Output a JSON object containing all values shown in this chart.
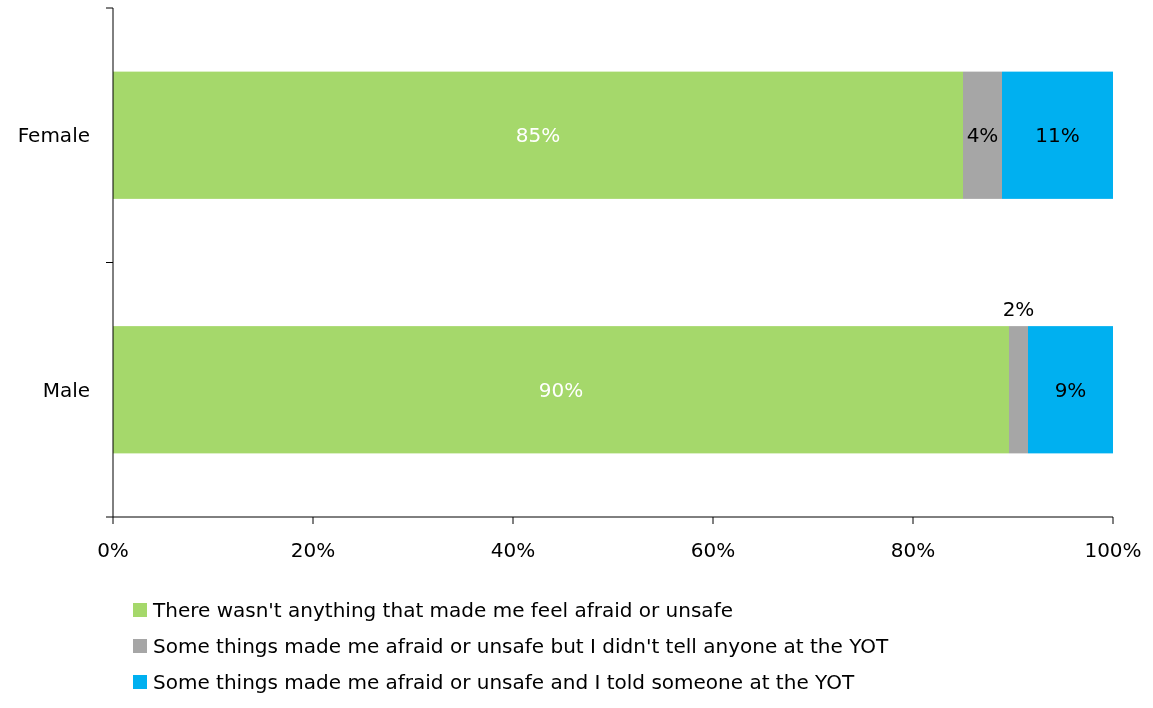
{
  "chart_data": {
    "type": "bar",
    "orientation": "horizontal",
    "stacked": true,
    "categories": [
      "Female",
      "Male"
    ],
    "series": [
      {
        "name": "There wasn't anything that made me feel afraid or unsafe",
        "color": "#a5d86b",
        "values": [
          85,
          89.6
        ],
        "value_labels": [
          "85%",
          "90%"
        ]
      },
      {
        "name": "Some things made me afraid or unsafe but I didn't tell anyone at the YOT",
        "color": "#a6a6a6",
        "values": [
          3.9,
          1.9
        ],
        "value_labels": [
          "4%",
          "2%"
        ]
      },
      {
        "name": "Some things made me afraid or unsafe and I told someone at the YOT",
        "color": "#00b0f0",
        "values": [
          11.1,
          8.5
        ],
        "value_labels": [
          "11%",
          "9%"
        ]
      }
    ],
    "xlim": [
      0,
      100
    ],
    "xticks": [
      {
        "value": 0,
        "label": "0%"
      },
      {
        "value": 20,
        "label": "20%"
      },
      {
        "value": 40,
        "label": "40%"
      },
      {
        "value": 60,
        "label": "60%"
      },
      {
        "value": 80,
        "label": "80%"
      },
      {
        "value": 100,
        "label": "100%"
      }
    ],
    "grid": false,
    "legend": "bottom"
  }
}
